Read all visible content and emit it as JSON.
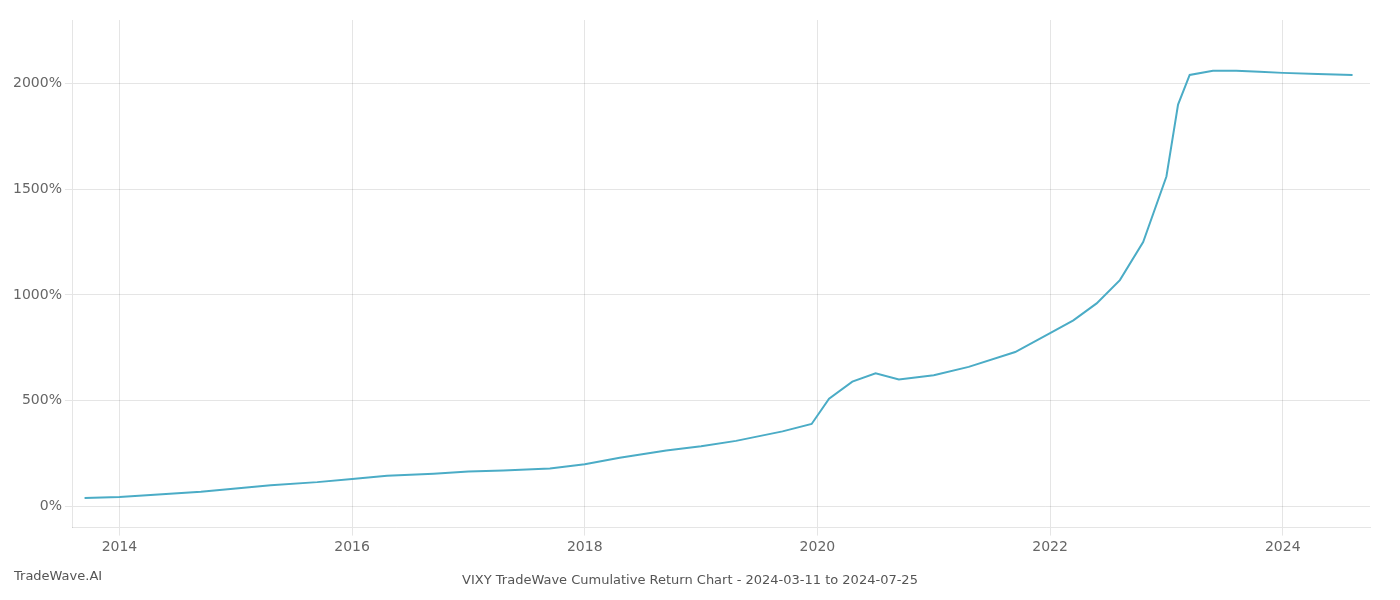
{
  "chart_data": {
    "type": "line",
    "title": "VIXY TradeWave Cumulative Return Chart - 2024-03-11 to 2024-07-25",
    "annotations": [
      "TradeWave.AI"
    ],
    "x": [
      2013.7,
      2014.0,
      2014.3,
      2014.7,
      2015.0,
      2015.3,
      2015.7,
      2016.0,
      2016.3,
      2016.7,
      2017.0,
      2017.3,
      2017.7,
      2018.0,
      2018.3,
      2018.7,
      2019.0,
      2019.3,
      2019.7,
      2019.95,
      2020.1,
      2020.3,
      2020.5,
      2020.7,
      2021.0,
      2021.3,
      2021.7,
      2022.0,
      2022.2,
      2022.4,
      2022.6,
      2022.8,
      2023.0,
      2023.1,
      2023.2,
      2023.4,
      2023.6,
      2023.8,
      2024.0,
      2024.3,
      2024.6
    ],
    "values": [
      40,
      45,
      55,
      70,
      85,
      100,
      115,
      130,
      145,
      155,
      165,
      170,
      180,
      200,
      230,
      265,
      285,
      310,
      355,
      390,
      510,
      590,
      630,
      600,
      620,
      660,
      730,
      820,
      880,
      960,
      1070,
      1250,
      1560,
      1900,
      2040,
      2060,
      2060,
      2055,
      2050,
      2045,
      2040
    ],
    "color": "#4bacc6",
    "xlim": [
      2013.6,
      2024.75
    ],
    "xticks": [
      2014,
      2016,
      2018,
      2020,
      2022,
      2024
    ],
    "ylim": [
      -100,
      2300
    ],
    "yticks": [
      {
        "value": 0,
        "label": "0%"
      },
      {
        "value": 500,
        "label": "500%"
      },
      {
        "value": 1000,
        "label": "1000%"
      },
      {
        "value": 1500,
        "label": "1500%"
      },
      {
        "value": 2000,
        "label": "2000%"
      }
    ],
    "grid": true
  }
}
